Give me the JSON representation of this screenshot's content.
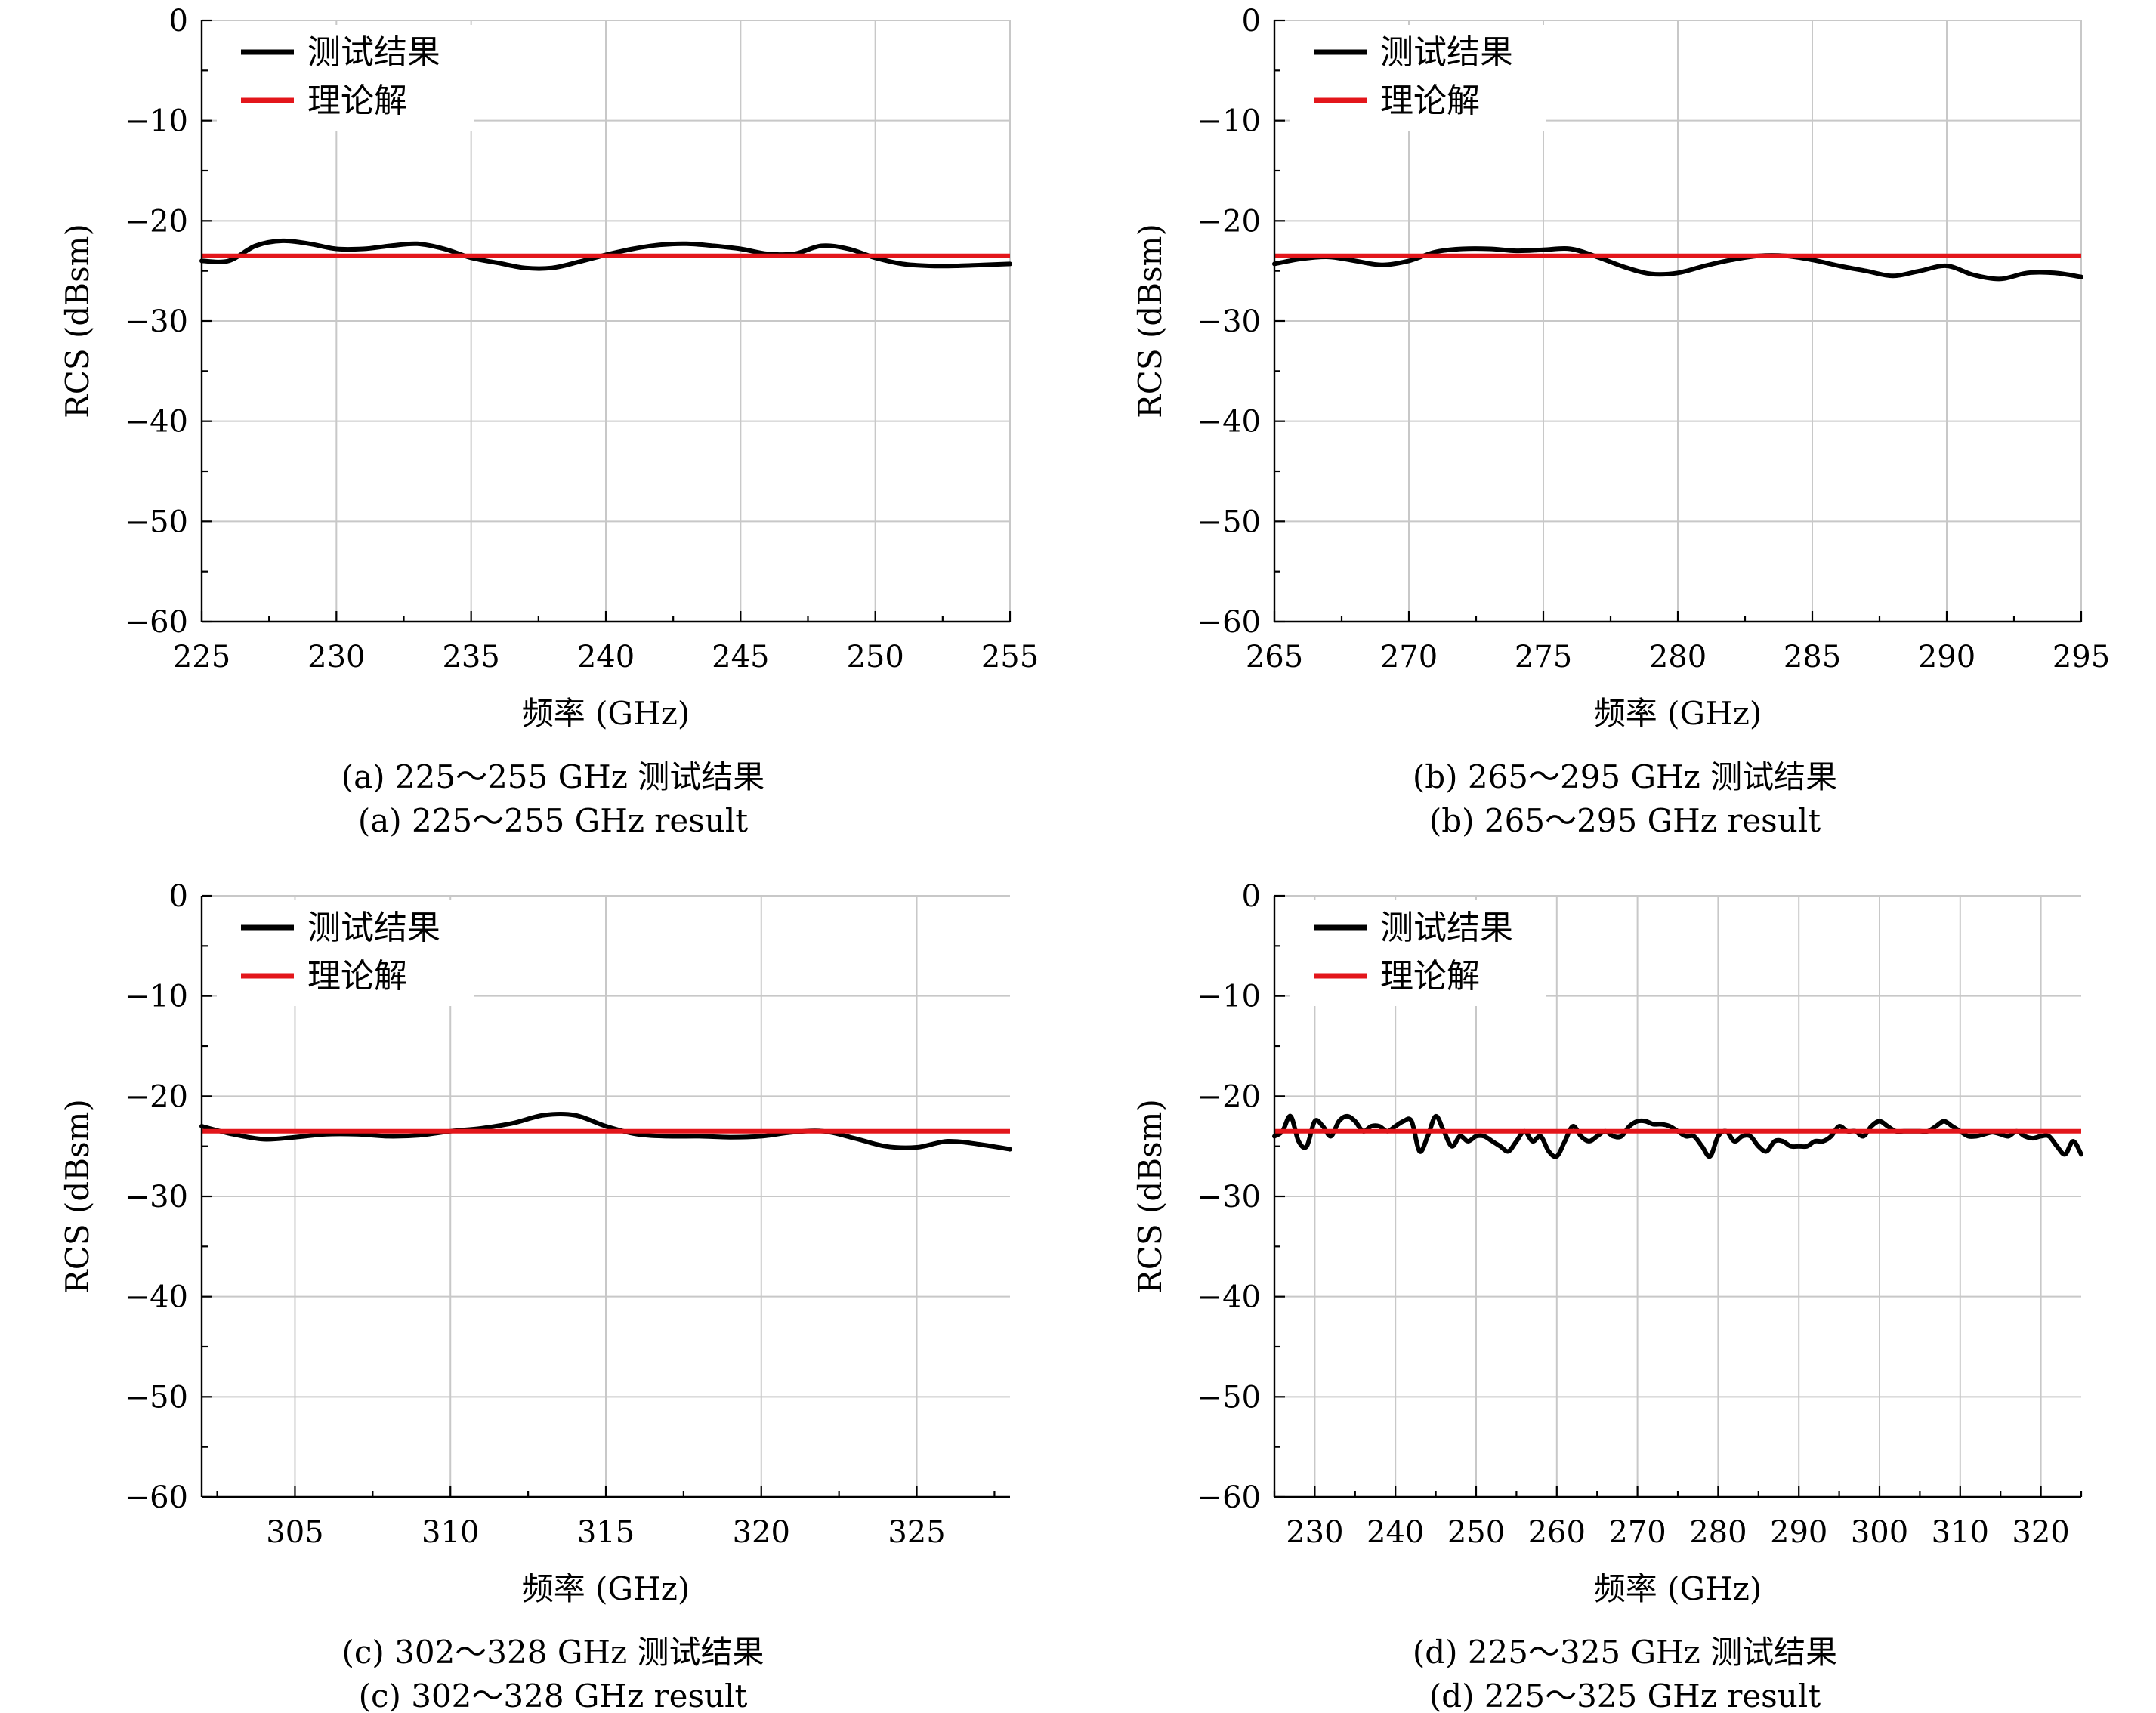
{
  "chart_data": [
    {
      "type": "line",
      "id": "a",
      "xlabel": "频率 (GHz)",
      "ylabel": "RCS (dBsm)",
      "xlim": [
        225,
        255
      ],
      "ylim": [
        -60,
        0
      ],
      "xticks": [
        225,
        230,
        235,
        240,
        245,
        250,
        255
      ],
      "yticks": [
        0,
        -10,
        -20,
        -30,
        -40,
        -50,
        -60
      ],
      "grid": true,
      "legend_position": "top-left",
      "caption_cn": "(a) 225～255 GHz 测试结果",
      "caption_en": "(a) 225～255 GHz result",
      "series": [
        {
          "name": "测试结果",
          "color": "#000000",
          "x": [
            225,
            226,
            227,
            228,
            229,
            230,
            231,
            232,
            233,
            234,
            235,
            236,
            237,
            238,
            239,
            240,
            241,
            242,
            243,
            244,
            245,
            246,
            247,
            248,
            249,
            250,
            251,
            252,
            253,
            254,
            255
          ],
          "y": [
            -24.0,
            -24.0,
            -22.5,
            -22.0,
            -22.3,
            -22.8,
            -22.8,
            -22.5,
            -22.3,
            -22.8,
            -23.7,
            -24.2,
            -24.7,
            -24.7,
            -24.1,
            -23.4,
            -22.8,
            -22.4,
            -22.3,
            -22.5,
            -22.8,
            -23.3,
            -23.3,
            -22.5,
            -22.8,
            -23.7,
            -24.3,
            -24.5,
            -24.5,
            -24.4,
            -24.3
          ]
        },
        {
          "name": "理论解",
          "color": "#e3161b",
          "x": [
            225,
            255
          ],
          "y": [
            -23.5,
            -23.5
          ]
        }
      ]
    },
    {
      "type": "line",
      "id": "b",
      "xlabel": "频率 (GHz)",
      "ylabel": "RCS (dBsm)",
      "xlim": [
        265,
        295
      ],
      "ylim": [
        -60,
        0
      ],
      "xticks": [
        265,
        270,
        275,
        280,
        285,
        290,
        295
      ],
      "yticks": [
        0,
        -10,
        -20,
        -30,
        -40,
        -50,
        -60
      ],
      "grid": true,
      "legend_position": "top-left",
      "caption_cn": "(b) 265～295 GHz 测试结果",
      "caption_en": "(b) 265～295 GHz result",
      "series": [
        {
          "name": "测试结果",
          "color": "#000000",
          "x": [
            265,
            266,
            267,
            268,
            269,
            270,
            271,
            272,
            273,
            274,
            275,
            276,
            277,
            278,
            279,
            280,
            281,
            282,
            283,
            284,
            285,
            286,
            287,
            288,
            289,
            290,
            291,
            292,
            293,
            294,
            295
          ],
          "y": [
            -24.3,
            -23.8,
            -23.6,
            -24.0,
            -24.4,
            -24.0,
            -23.1,
            -22.8,
            -22.8,
            -23.0,
            -22.9,
            -22.8,
            -23.6,
            -24.6,
            -25.3,
            -25.2,
            -24.5,
            -23.9,
            -23.5,
            -23.5,
            -23.9,
            -24.5,
            -25.0,
            -25.5,
            -25.0,
            -24.5,
            -25.4,
            -25.8,
            -25.2,
            -25.2,
            -25.6
          ]
        },
        {
          "name": "理论解",
          "color": "#e3161b",
          "x": [
            265,
            295
          ],
          "y": [
            -23.5,
            -23.5
          ]
        }
      ]
    },
    {
      "type": "line",
      "id": "c",
      "xlabel": "频率 (GHz)",
      "ylabel": "RCS (dBsm)",
      "xlim": [
        302,
        328
      ],
      "ylim": [
        -60,
        0
      ],
      "xticks": [
        305,
        310,
        315,
        320,
        325
      ],
      "yticks": [
        0,
        -10,
        -20,
        -30,
        -40,
        -50,
        -60
      ],
      "grid": true,
      "legend_position": "top-left",
      "caption_cn": "(c) 302～328 GHz 测试结果",
      "caption_en": "(c) 302～328 GHz result",
      "series": [
        {
          "name": "测试结果",
          "color": "#000000",
          "x": [
            302,
            303,
            304,
            305,
            306,
            307,
            308,
            309,
            310,
            311,
            312,
            313,
            314,
            315,
            316,
            317,
            318,
            319,
            320,
            321,
            322,
            323,
            324,
            325,
            326,
            327,
            328
          ],
          "y": [
            -23.0,
            -23.8,
            -24.3,
            -24.1,
            -23.8,
            -23.8,
            -24.0,
            -23.9,
            -23.5,
            -23.2,
            -22.7,
            -21.9,
            -21.9,
            -23.0,
            -23.8,
            -24.0,
            -24.0,
            -24.1,
            -24.0,
            -23.6,
            -23.5,
            -24.2,
            -25.0,
            -25.1,
            -24.5,
            -24.8,
            -25.3
          ]
        },
        {
          "name": "理论解",
          "color": "#e3161b",
          "x": [
            302,
            328
          ],
          "y": [
            -23.5,
            -23.5
          ]
        }
      ]
    },
    {
      "type": "line",
      "id": "d",
      "xlabel": "频率 (GHz)",
      "ylabel": "RCS (dBsm)",
      "xlim": [
        225,
        325
      ],
      "ylim": [
        -60,
        0
      ],
      "xticks": [
        230,
        240,
        250,
        260,
        270,
        280,
        290,
        300,
        310,
        320
      ],
      "yticks": [
        0,
        -10,
        -20,
        -30,
        -40,
        -50,
        -60
      ],
      "grid": true,
      "legend_position": "top-left",
      "caption_cn": "(d) 225～325 GHz 测试结果",
      "caption_en": "(d) 225～325 GHz result",
      "series": [
        {
          "name": "测试结果",
          "color": "#000000",
          "x": [
            225,
            226,
            227,
            228,
            229,
            230,
            231,
            232,
            233,
            234,
            235,
            236,
            237,
            238,
            239,
            240,
            241,
            242,
            243,
            244,
            245,
            246,
            247,
            248,
            249,
            250,
            251,
            252,
            253,
            254,
            255,
            256,
            257,
            258,
            259,
            260,
            261,
            262,
            263,
            264,
            265,
            266,
            267,
            268,
            269,
            270,
            271,
            272,
            273,
            274,
            275,
            276,
            277,
            278,
            279,
            280,
            281,
            282,
            283,
            284,
            285,
            286,
            287,
            288,
            289,
            290,
            291,
            292,
            293,
            294,
            295,
            296,
            297,
            298,
            299,
            300,
            301,
            302,
            303,
            304,
            305,
            306,
            307,
            308,
            309,
            310,
            311,
            312,
            313,
            314,
            315,
            316,
            317,
            318,
            319,
            320,
            321,
            322,
            323,
            324,
            325
          ],
          "y": [
            -24.0,
            -23.5,
            -22.0,
            -24.5,
            -25.0,
            -22.5,
            -23.0,
            -24.0,
            -22.5,
            -22.0,
            -22.5,
            -23.5,
            -23.0,
            -23.0,
            -23.5,
            -23.0,
            -22.5,
            -22.5,
            -25.5,
            -24.0,
            -22.0,
            -23.5,
            -25.0,
            -24.0,
            -24.5,
            -24.0,
            -24.0,
            -24.5,
            -25.0,
            -25.5,
            -24.5,
            -23.5,
            -24.5,
            -24.0,
            -25.5,
            -26.0,
            -24.5,
            -23.0,
            -24.0,
            -24.5,
            -24.0,
            -23.5,
            -24.0,
            -24.0,
            -23.0,
            -22.5,
            -22.5,
            -22.8,
            -22.8,
            -23.0,
            -23.5,
            -24.0,
            -24.0,
            -25.0,
            -26.0,
            -24.0,
            -23.5,
            -24.5,
            -24.0,
            -24.0,
            -25.0,
            -25.5,
            -24.5,
            -24.5,
            -25.0,
            -25.0,
            -25.0,
            -24.5,
            -24.5,
            -24.0,
            -23.0,
            -23.5,
            -23.5,
            -24.0,
            -23.0,
            -22.5,
            -23.0,
            -23.5,
            -23.5,
            -23.5,
            -23.5,
            -23.5,
            -23.0,
            -22.5,
            -23.0,
            -23.5,
            -24.0,
            -24.0,
            -23.8,
            -23.6,
            -23.8,
            -24.0,
            -23.5,
            -24.0,
            -24.2,
            -24.0,
            -24.0,
            -25.0,
            -25.8,
            -24.5,
            -25.8
          ]
        },
        {
          "name": "理论解",
          "color": "#e3161b",
          "x": [
            225,
            325
          ],
          "y": [
            -23.5,
            -23.5
          ]
        }
      ]
    }
  ]
}
